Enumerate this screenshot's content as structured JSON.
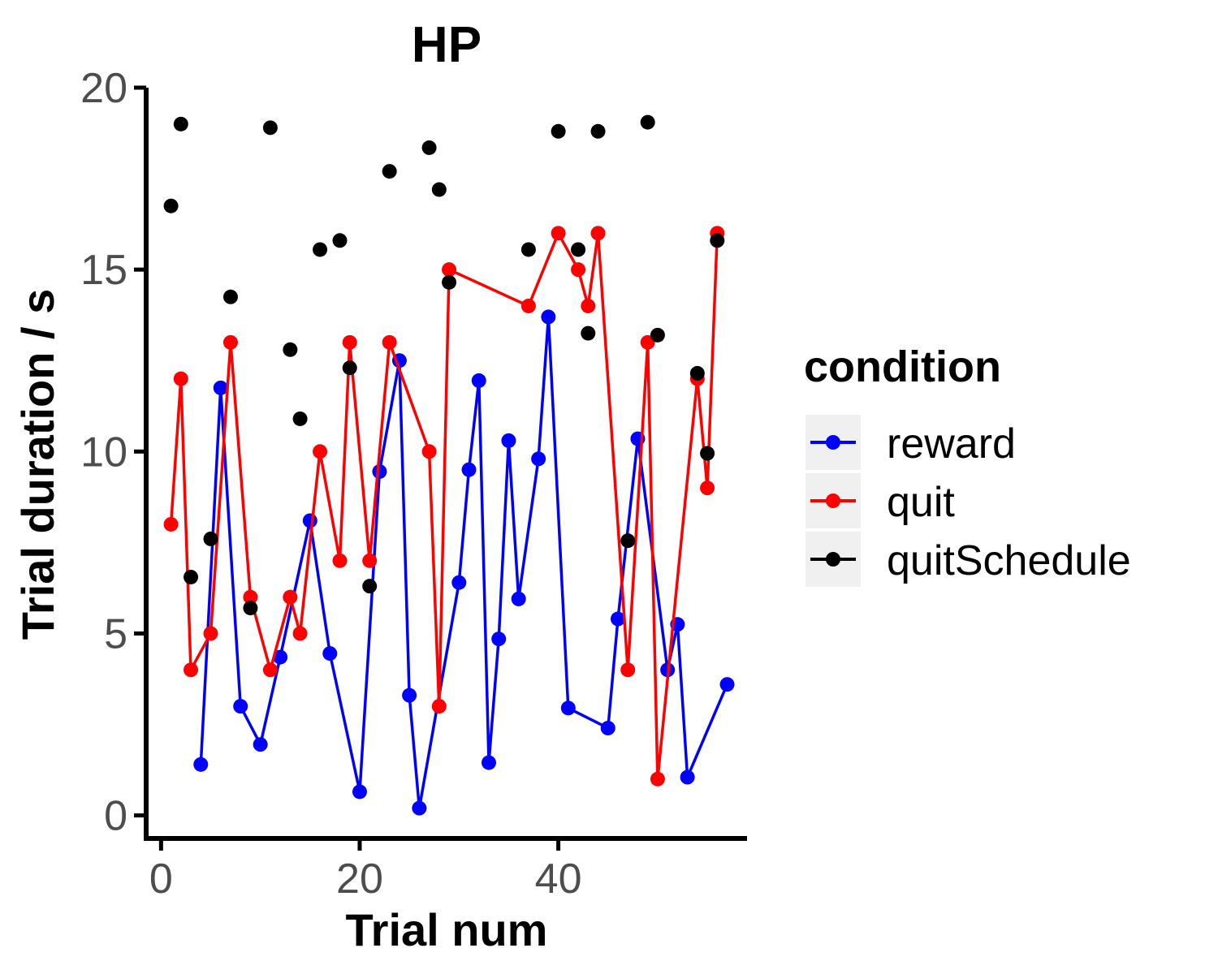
{
  "chart_data": {
    "type": "line",
    "title": "HP",
    "xlabel": "Trial num",
    "ylabel": "Trial duration / s",
    "xlim": [
      -1.5,
      59
    ],
    "ylim": [
      -0.7,
      20
    ],
    "x_ticks": [
      0,
      20,
      40
    ],
    "y_ticks": [
      0,
      5,
      10,
      15,
      20
    ],
    "grid": false,
    "legend": {
      "title": "condition",
      "placement": "right"
    },
    "series": [
      {
        "name": "reward",
        "color": "#0000ff",
        "mode": "lines+markers",
        "x": [
          4,
          6,
          8,
          10,
          12,
          15,
          17,
          20,
          22,
          24,
          25,
          26,
          30,
          31,
          32,
          33,
          34,
          35,
          36,
          38,
          39,
          41,
          45,
          46,
          48,
          51,
          52,
          53,
          57
        ],
        "y": [
          1.4,
          11.75,
          3.0,
          1.95,
          4.35,
          8.1,
          4.45,
          0.65,
          9.45,
          12.5,
          3.3,
          0.2,
          6.4,
          9.5,
          11.95,
          1.45,
          4.85,
          10.3,
          5.95,
          9.8,
          13.7,
          2.95,
          2.4,
          5.4,
          10.35,
          4.0,
          5.25,
          1.05,
          3.6
        ]
      },
      {
        "name": "quit",
        "color": "#ff0000",
        "mode": "lines+markers",
        "x": [
          1,
          2,
          3,
          5,
          7,
          9,
          11,
          13,
          14,
          16,
          18,
          19,
          21,
          23,
          27,
          28,
          29,
          37,
          40,
          42,
          43,
          44,
          47,
          49,
          50,
          54,
          55,
          56
        ],
        "y": [
          8.0,
          12.0,
          4.0,
          5.0,
          13.0,
          6.0,
          4.0,
          6.0,
          5.0,
          10.0,
          7.0,
          13.0,
          7.0,
          13.0,
          10.0,
          3.0,
          15.0,
          14.0,
          16.0,
          15.0,
          14.0,
          16.0,
          4.0,
          13.0,
          1.0,
          12.0,
          9.0,
          16.0
        ]
      },
      {
        "name": "quitSchedule",
        "color": "#000000",
        "mode": "markers",
        "x": [
          1,
          2,
          3,
          5,
          7,
          9,
          11,
          13,
          14,
          16,
          18,
          19,
          21,
          23,
          27,
          28,
          29,
          37,
          40,
          42,
          43,
          44,
          47,
          49,
          50,
          54,
          55,
          56
        ],
        "y": [
          16.75,
          19.0,
          6.55,
          7.6,
          14.25,
          5.7,
          18.9,
          12.8,
          10.9,
          15.55,
          15.8,
          12.3,
          6.3,
          17.7,
          18.35,
          17.2,
          14.65,
          15.55,
          18.8,
          15.55,
          13.25,
          18.8,
          7.55,
          19.05,
          13.2,
          12.15,
          9.95,
          15.8
        ]
      }
    ]
  }
}
